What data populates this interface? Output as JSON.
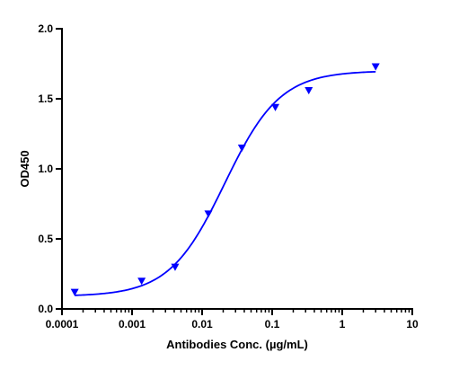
{
  "chart_data": {
    "type": "scatter",
    "title": "",
    "xlabel": "Antibodies Conc. (µg/mL)",
    "ylabel": "OD450",
    "x_scale": "log",
    "xlim": [
      0.0001,
      10
    ],
    "ylim": [
      0,
      2.0
    ],
    "x_ticks": [
      {
        "value": 0.0001,
        "label": "0.0001"
      },
      {
        "value": 0.001,
        "label": "0.001"
      },
      {
        "value": 0.01,
        "label": "0.01"
      },
      {
        "value": 0.1,
        "label": "0.1"
      },
      {
        "value": 1,
        "label": "1"
      },
      {
        "value": 10,
        "label": "10"
      }
    ],
    "y_ticks": [
      {
        "value": 0,
        "label": "0.0"
      },
      {
        "value": 0.5,
        "label": "0.5"
      },
      {
        "value": 1.0,
        "label": "1.0"
      },
      {
        "value": 1.5,
        "label": "1.5"
      },
      {
        "value": 2.0,
        "label": "2.0"
      }
    ],
    "grid": false,
    "legend": "none",
    "series": [
      {
        "marker": "triangle-down",
        "color": "#0000ff",
        "points": [
          {
            "x": 0.000152,
            "y": 0.12
          },
          {
            "x": 0.00137,
            "y": 0.2
          },
          {
            "x": 0.00412,
            "y": 0.3
          },
          {
            "x": 0.0123,
            "y": 0.68
          },
          {
            "x": 0.037,
            "y": 1.15
          },
          {
            "x": 0.111,
            "y": 1.44
          },
          {
            "x": 0.333,
            "y": 1.56
          },
          {
            "x": 3.0,
            "y": 1.73
          }
        ],
        "fit": {
          "type": "4PL",
          "bottom": 0.09,
          "top": 1.7,
          "ec50": 0.021,
          "hill": 1.1,
          "color": "#0000ff"
        }
      }
    ]
  }
}
